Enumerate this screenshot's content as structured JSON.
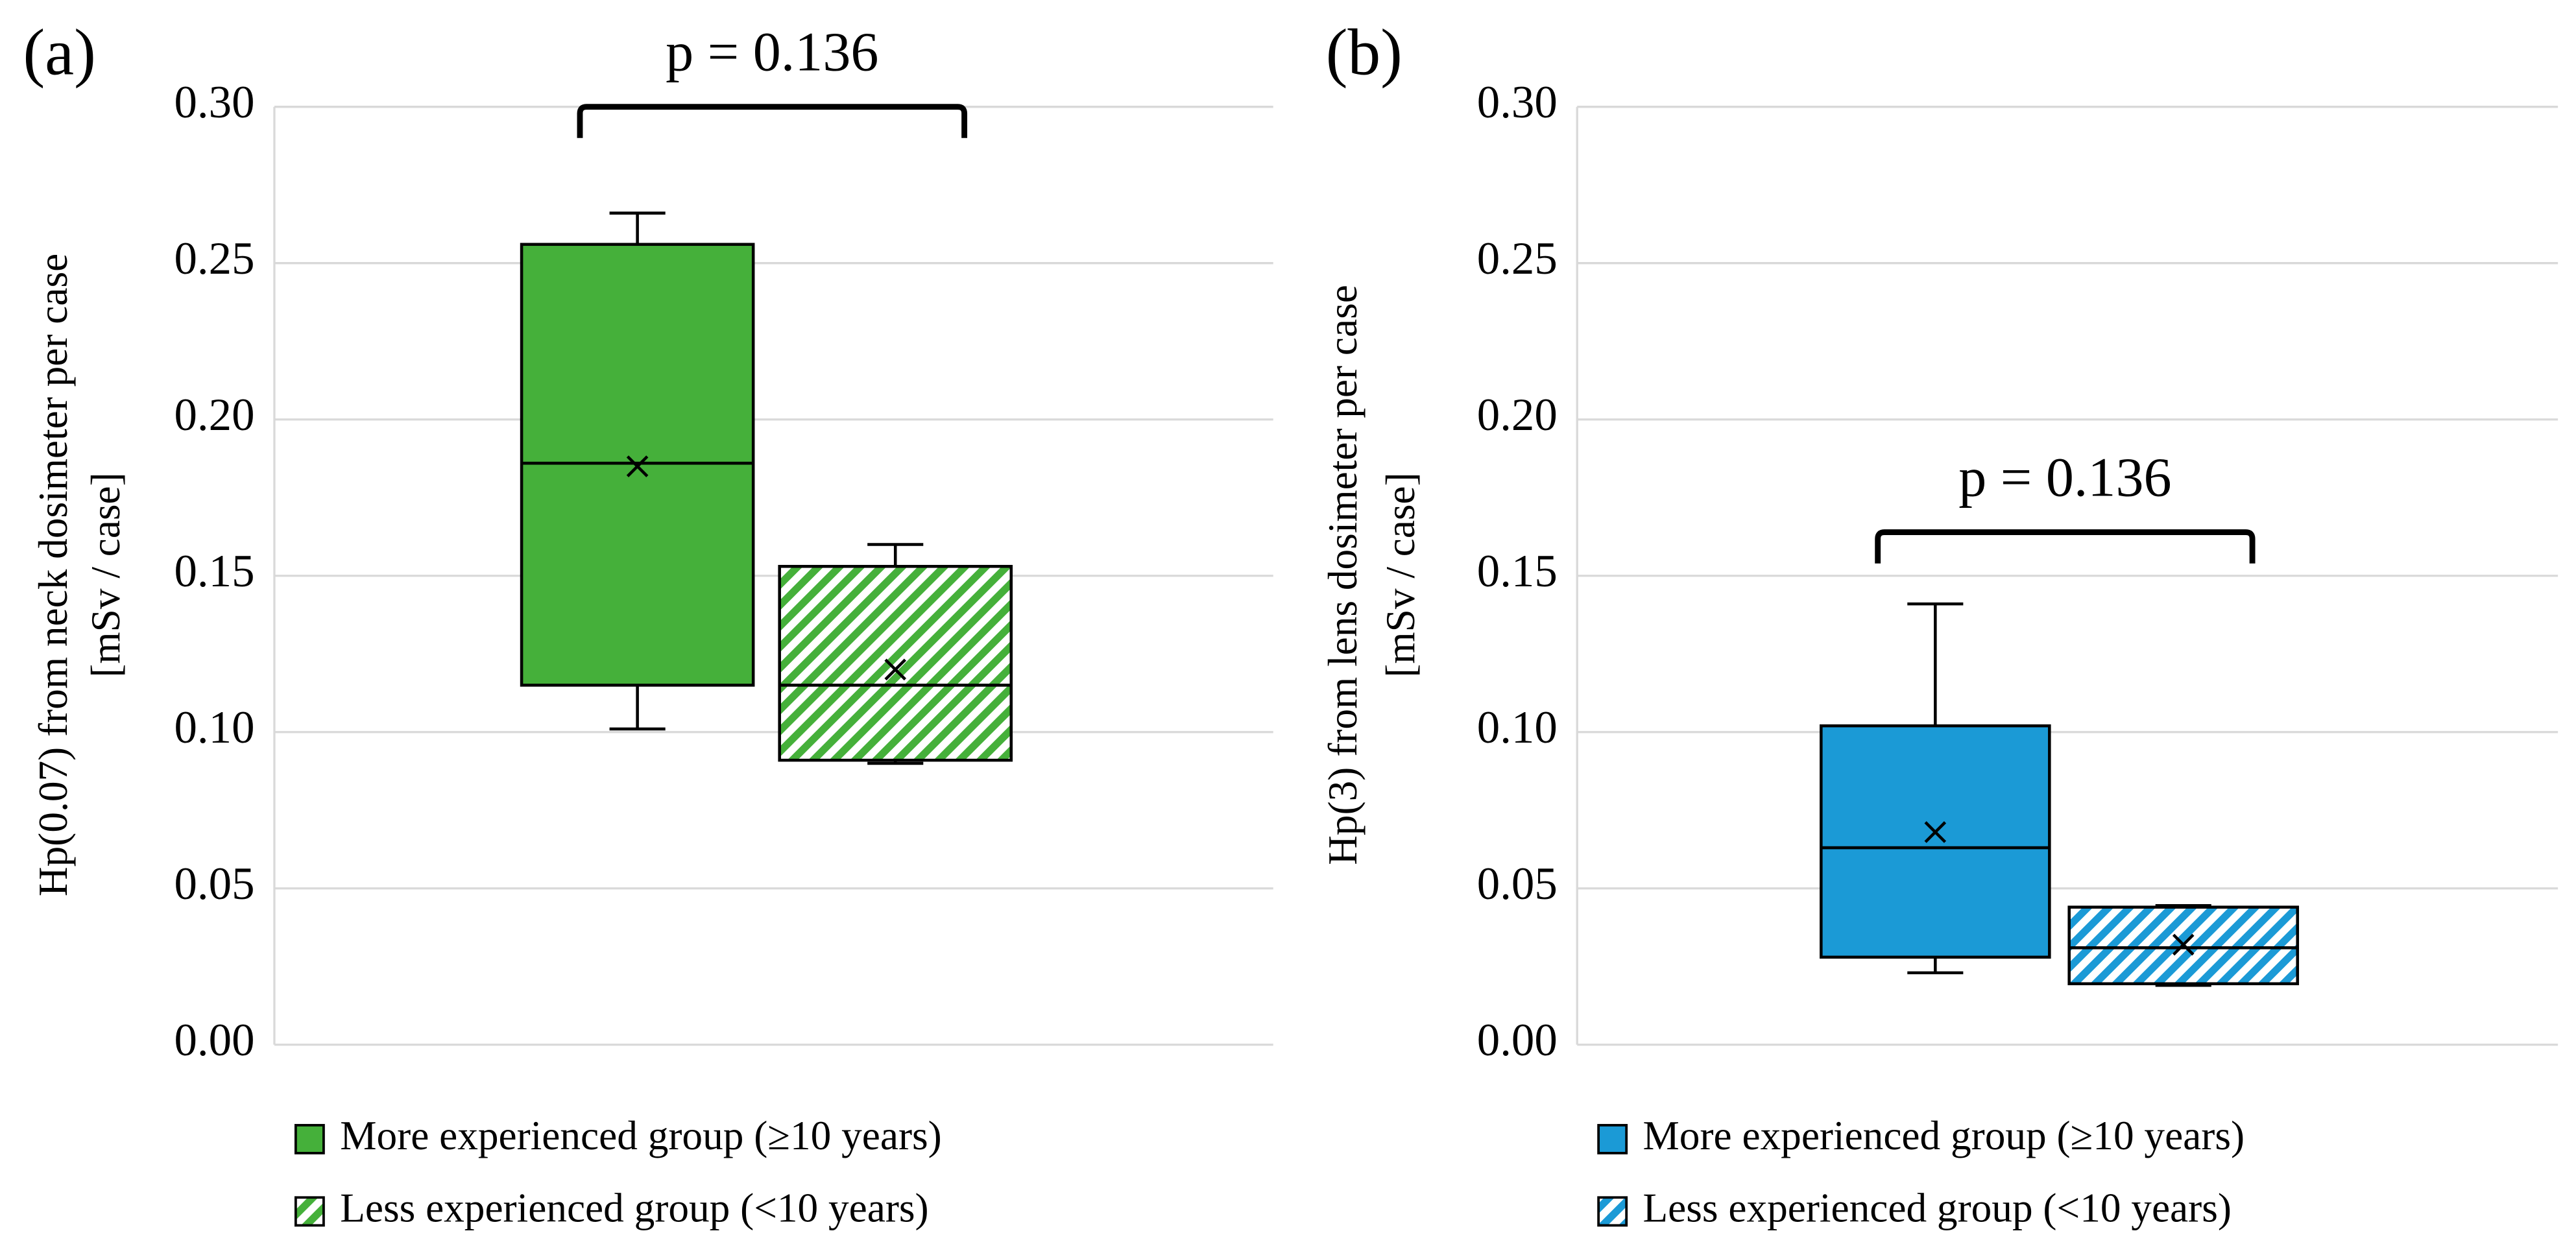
{
  "chart_data": [
    {
      "type": "box",
      "panel_label": "(a)",
      "ylabel": [
        "Hp(0.07) from neck dosimeter per case",
        "[mSv / case]"
      ],
      "annotation": "p = 0.136",
      "ylim": [
        0,
        0.3
      ],
      "yticks": [
        {
          "value": 0,
          "label": "0.00"
        },
        0.05,
        {
          "value": 0.1,
          "label": "0.10"
        },
        0.15,
        {
          "value": 0.2,
          "label": "0.20"
        },
        0.25,
        {
          "value": 0.3,
          "label": "0.30"
        }
      ],
      "grid": true,
      "series": [
        {
          "name": "More experienced group (≥10 years)",
          "color": "#45b03a",
          "hatch": false,
          "min": 0.101,
          "q1": 0.115,
          "median": 0.186,
          "q3": 0.256,
          "max": 0.266,
          "mean": 0.185
        },
        {
          "name": "Less experienced group (<10 years)",
          "color": "#45b03a",
          "hatch": true,
          "min": 0.09,
          "q1": 0.091,
          "median": 0.115,
          "q3": 0.153,
          "max": 0.16,
          "mean": 0.12
        }
      ]
    },
    {
      "type": "box",
      "panel_label": "(b)",
      "ylabel": [
        "Hp(3) from lens dosimeter per case",
        "[mSv / case]"
      ],
      "annotation": "p = 0.136",
      "ylim": [
        0,
        0.3
      ],
      "yticks": [
        {
          "value": 0,
          "label": "0.00"
        },
        0.05,
        {
          "value": 0.1,
          "label": "0.10"
        },
        0.15,
        {
          "value": 0.2,
          "label": "0.20"
        },
        0.25,
        {
          "value": 0.3,
          "label": "0.30"
        }
      ],
      "grid": true,
      "series": [
        {
          "name": "More experienced group (≥10 years)",
          "color": "#1b9ad6",
          "hatch": false,
          "min": 0.023,
          "q1": 0.028,
          "median": 0.063,
          "q3": 0.102,
          "max": 0.141,
          "mean": 0.068
        },
        {
          "name": "Less experienced group (<10 years)",
          "color": "#1b9ad6",
          "hatch": true,
          "min": 0.019,
          "q1": 0.0195,
          "median": 0.031,
          "q3": 0.044,
          "max": 0.0445,
          "mean": 0.032
        }
      ]
    }
  ]
}
